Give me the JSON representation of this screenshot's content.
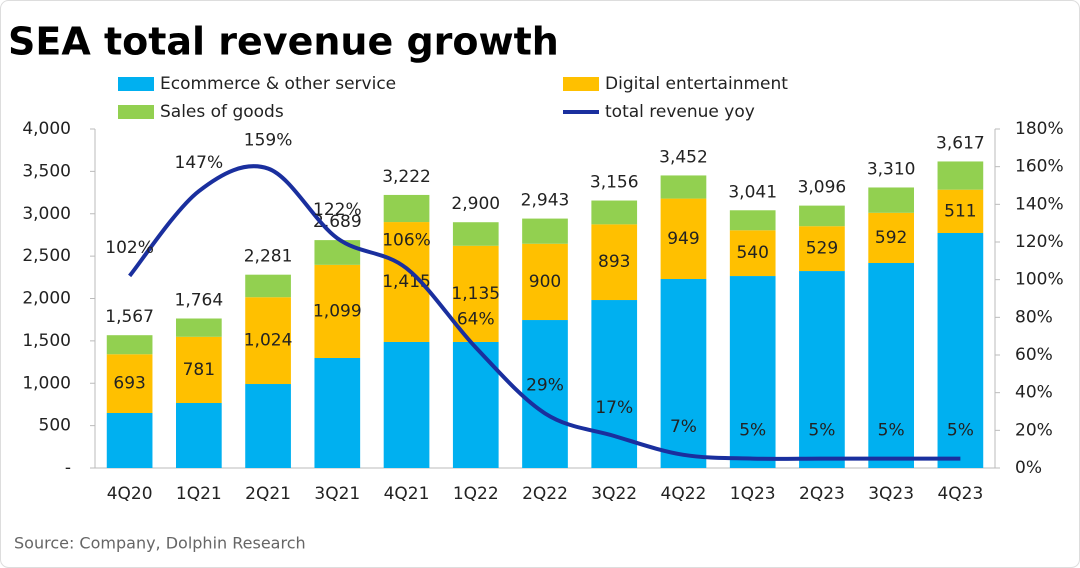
{
  "chart_data": {
    "type": "bar",
    "title": "SEA total revenue growth",
    "source": "Source: Company, Dolphin Research",
    "categories": [
      "4Q20",
      "1Q21",
      "2Q21",
      "3Q21",
      "4Q21",
      "1Q22",
      "2Q22",
      "3Q22",
      "4Q22",
      "1Q23",
      "2Q23",
      "3Q23",
      "4Q23"
    ],
    "series": [
      {
        "name": "Ecommerce & other service",
        "color": "#00B0F0",
        "values": [
          649,
          767,
          991,
          1298,
          1487,
          1487,
          1746,
          1982,
          2230,
          2265,
          2324,
          2419,
          2773
        ]
      },
      {
        "name": "Digital entertainment",
        "color": "#FFC000",
        "values": [
          693,
          781,
          1024,
          1099,
          1415,
          1135,
          900,
          893,
          949,
          540,
          529,
          592,
          511
        ]
      },
      {
        "name": "Sales of goods",
        "color": "#92D050",
        "values": [
          225,
          216,
          266,
          292,
          320,
          278,
          297,
          281,
          273,
          236,
          243,
          299,
          333
        ]
      },
      {
        "name": "total revenue yoy",
        "color": "#1A2F9E",
        "type": "line",
        "axis": "y2",
        "values": [
          102,
          147,
          159,
          122,
          106,
          64,
          29,
          17,
          7,
          5,
          5,
          5,
          5
        ]
      }
    ],
    "totals": [
      1567,
      1764,
      2281,
      2689,
      3222,
      2900,
      2943,
      3156,
      3452,
      3041,
      3096,
      3310,
      3617
    ],
    "total_labels": [
      "1,567",
      "1,764",
      "2,281",
      "2,689",
      "3,222",
      "2,900",
      "2,943",
      "3,156",
      "3,452",
      "3,041",
      "3,096",
      "3,310",
      "3,617"
    ],
    "value_labels": [
      "693",
      "781",
      "1,024",
      "1,099",
      "1,415",
      "1,135",
      "900",
      "893",
      "949",
      "540",
      "529",
      "592",
      "511"
    ],
    "line_labels": [
      "102%",
      "147%",
      "159%",
      "122%",
      "106%",
      "64%",
      "29%",
      "17%",
      "7%",
      "5%",
      "5%",
      "5%",
      "5%"
    ],
    "ylim": [
      0,
      4000
    ],
    "yticks": [
      {
        "value": 0,
        "label": "-"
      },
      500,
      {
        "value": 1000,
        "label": "1,000"
      },
      {
        "value": 1500,
        "label": "1,500"
      },
      {
        "value": 2000,
        "label": "2,000"
      },
      {
        "value": 2500,
        "label": "2,500"
      },
      {
        "value": 3000,
        "label": "3,000"
      },
      {
        "value": 3500,
        "label": "3,500"
      },
      {
        "value": 4000,
        "label": "4,000"
      }
    ],
    "y2lim": [
      0,
      180
    ],
    "y2ticks": [
      {
        "value": 0,
        "label": "0%"
      },
      {
        "value": 20,
        "label": "20%"
      },
      {
        "value": 40,
        "label": "40%"
      },
      {
        "value": 60,
        "label": "60%"
      },
      {
        "value": 80,
        "label": "80%"
      },
      {
        "value": 100,
        "label": "100%"
      },
      {
        "value": 120,
        "label": "120%"
      },
      {
        "value": 140,
        "label": "140%"
      },
      {
        "value": 160,
        "label": "160%"
      },
      {
        "value": 180,
        "label": "180%"
      }
    ],
    "grid": false
  }
}
